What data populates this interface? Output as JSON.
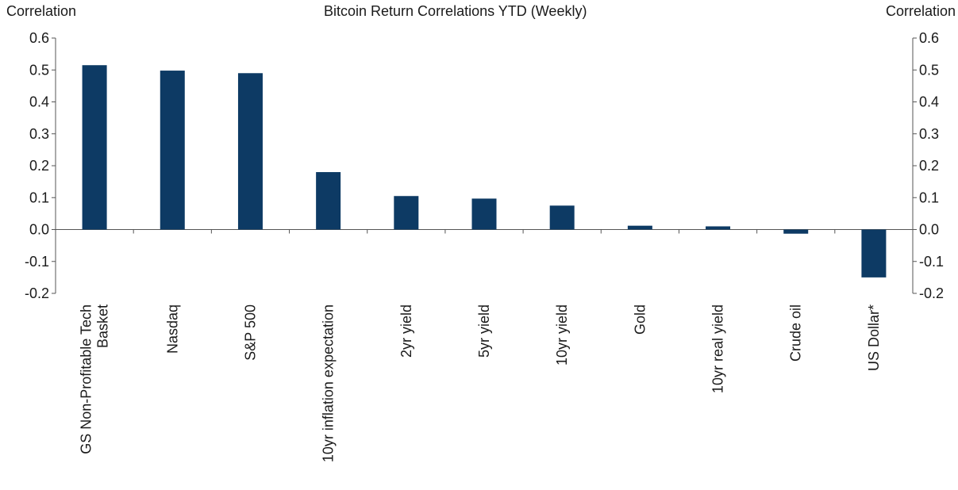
{
  "chart_data": {
    "type": "bar",
    "title": "Bitcoin Return Correlations YTD (Weekly)",
    "ylabel_left": "Correlation",
    "ylabel_right": "Correlation",
    "ylim": [
      -0.2,
      0.6
    ],
    "yticks": [
      "0.6",
      "0.5",
      "0.4",
      "0.3",
      "0.2",
      "0.1",
      "0.0",
      "-0.1",
      "-0.2"
    ],
    "ytick_values": [
      0.6,
      0.5,
      0.4,
      0.3,
      0.2,
      0.1,
      0.0,
      -0.1,
      -0.2
    ],
    "categories": [
      [
        "GS Non-Profitable Tech",
        "Basket"
      ],
      [
        "Nasdaq"
      ],
      [
        "S&P 500"
      ],
      [
        "10yr inflation expectation"
      ],
      [
        "2yr yield"
      ],
      [
        "5yr yield"
      ],
      [
        "10yr yield"
      ],
      [
        "Gold"
      ],
      [
        "10yr real yield"
      ],
      [
        "Crude oil"
      ],
      [
        "US Dollar*"
      ]
    ],
    "values": [
      0.515,
      0.498,
      0.49,
      0.18,
      0.105,
      0.097,
      0.075,
      0.012,
      0.01,
      -0.013,
      -0.15
    ],
    "bar_color": "#0d3a64",
    "grid": false,
    "legend": "none"
  }
}
